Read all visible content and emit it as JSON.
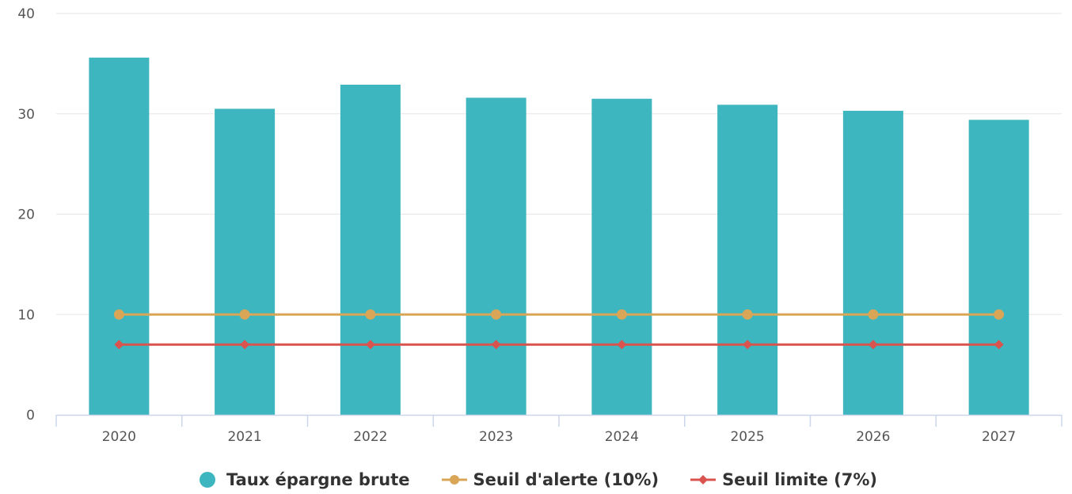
{
  "chart_data": {
    "type": "bar",
    "categories": [
      "2020",
      "2021",
      "2022",
      "2023",
      "2024",
      "2025",
      "2026",
      "2027"
    ],
    "series": [
      {
        "name": "Taux épargne brute",
        "kind": "bar",
        "color": "#3eb6bf",
        "values": [
          35.6,
          30.5,
          32.9,
          31.6,
          31.5,
          30.9,
          30.3,
          29.4
        ]
      },
      {
        "name": "Seuil d'alerte (10%)",
        "kind": "line",
        "marker": "circle",
        "color": "#d9a657",
        "values": [
          10,
          10,
          10,
          10,
          10,
          10,
          10,
          10
        ]
      },
      {
        "name": "Seuil limite (7%)",
        "kind": "line",
        "marker": "diamond",
        "color": "#d9534f",
        "values": [
          7,
          7,
          7,
          7,
          7,
          7,
          7,
          7
        ]
      }
    ],
    "ylim": [
      0,
      40
    ],
    "yticks": [
      "0",
      "10",
      "20",
      "30",
      "40"
    ],
    "title": "",
    "xlabel": "",
    "ylabel": "",
    "grid": true,
    "legend_position": "bottom-center"
  }
}
